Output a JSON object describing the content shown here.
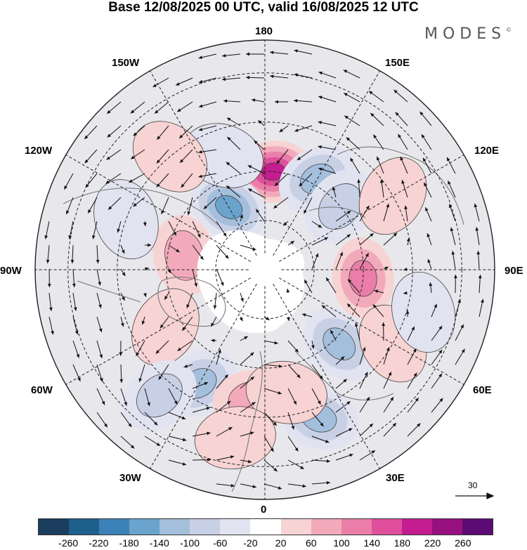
{
  "title": "Base 12/08/2025 00 UTC, valid 16/08/2025 12 UTC",
  "logo": "MODES",
  "logo_mark": "©",
  "longitude_labels": {
    "lon_180": "180",
    "lon_150w": "150W",
    "lon_150e": "150E",
    "lon_120w": "120W",
    "lon_120e": "120E",
    "lon_90w": "90W",
    "lon_90e": "90E",
    "lon_60w": "60W",
    "lon_60e": "60E",
    "lon_30w": "30W",
    "lon_30e": "30E",
    "lon_0": "0"
  },
  "reference_vector": {
    "label": "30"
  },
  "colorbar": {
    "colors": [
      "#1b3d5e",
      "#1f5f8e",
      "#3b82b8",
      "#6aa3cc",
      "#a3bfdc",
      "#c8d0e6",
      "#e2e3f0",
      "#ffffff",
      "#f7d3d3",
      "#f2aabb",
      "#ea7ea8",
      "#df4f9c",
      "#c41d8f",
      "#961080",
      "#5d0b74"
    ],
    "tick_labels": [
      "-260",
      "-220",
      "-180",
      "-140",
      "-100",
      "-60",
      "-20",
      "20",
      "60",
      "100",
      "140",
      "180",
      "220",
      "260"
    ]
  },
  "anomaly_centers": [
    {
      "lon": 175,
      "lat": 60,
      "value": 200
    },
    {
      "lon": -150,
      "lat": 68,
      "value": -180
    },
    {
      "lon": -160,
      "lat": 53,
      "value": -60
    },
    {
      "lon": 150,
      "lat": 58,
      "value": -140
    },
    {
      "lon": 130,
      "lat": 60,
      "value": -100
    },
    {
      "lon": -140,
      "lat": 45,
      "value": 60
    },
    {
      "lon": 120,
      "lat": 45,
      "value": 40
    },
    {
      "lon": -100,
      "lat": 65,
      "value": 110
    },
    {
      "lon": -60,
      "lat": 55,
      "value": 50
    },
    {
      "lon": 85,
      "lat": 60,
      "value": 140
    },
    {
      "lon": 45,
      "lat": 58,
      "value": -120
    },
    {
      "lon": 60,
      "lat": 45,
      "value": 40
    },
    {
      "lon": -30,
      "lat": 50,
      "value": -130
    },
    {
      "lon": -40,
      "lat": 40,
      "value": -80
    },
    {
      "lon": -5,
      "lat": 50,
      "value": 100
    },
    {
      "lon": 20,
      "lat": 42,
      "value": -140
    },
    {
      "lon": 10,
      "lat": 52,
      "value": 40
    },
    {
      "lon": -10,
      "lat": 38,
      "value": 50
    },
    {
      "lon": 75,
      "lat": 40,
      "value": -40
    },
    {
      "lon": -110,
      "lat": 45,
      "value": -40
    }
  ]
}
